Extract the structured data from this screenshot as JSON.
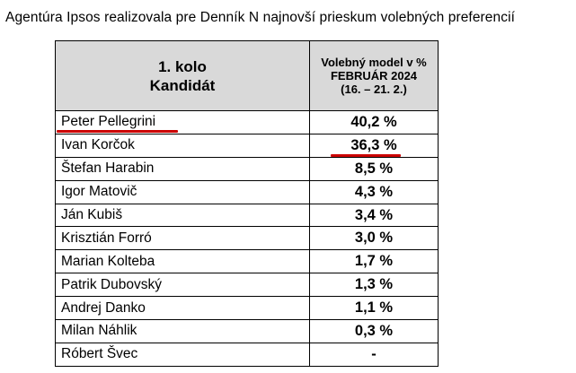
{
  "page": {
    "title": "Agentúra Ipsos realizovala pre Denník N najnovší prieskum volebných preferencií"
  },
  "table": {
    "header": {
      "col1_line1": "1. kolo",
      "col1_line2": "Kandidát",
      "col2_line1": "Volebný model v %",
      "col2_line2": "FEBRUÁR 2024",
      "col2_line3": "(16. – 21. 2.)"
    },
    "rows": [
      {
        "name": "Peter Pellegrini",
        "value": "40,2 %"
      },
      {
        "name": "Ivan Korčok",
        "value": "36,3 %"
      },
      {
        "name": "Štefan Harabin",
        "value": "8,5 %"
      },
      {
        "name": "Igor Matovič",
        "value": "4,3 %"
      },
      {
        "name": "Ján Kubiš",
        "value": "3,4 %"
      },
      {
        "name": "Krisztián Forró",
        "value": "3,0 %"
      },
      {
        "name": "Marian Kolteba",
        "value": "1,7 %"
      },
      {
        "name": "Patrik Dubovský",
        "value": "1,3 %"
      },
      {
        "name": "Andrej Danko",
        "value": "1,1 %"
      },
      {
        "name": "Milan Náhlik",
        "value": "0,3 %"
      },
      {
        "name": "Róbert Švec",
        "value": "-"
      }
    ]
  },
  "colors": {
    "header_background": "#d9d9d9",
    "highlight": "#cc0000",
    "border": "#000000"
  }
}
